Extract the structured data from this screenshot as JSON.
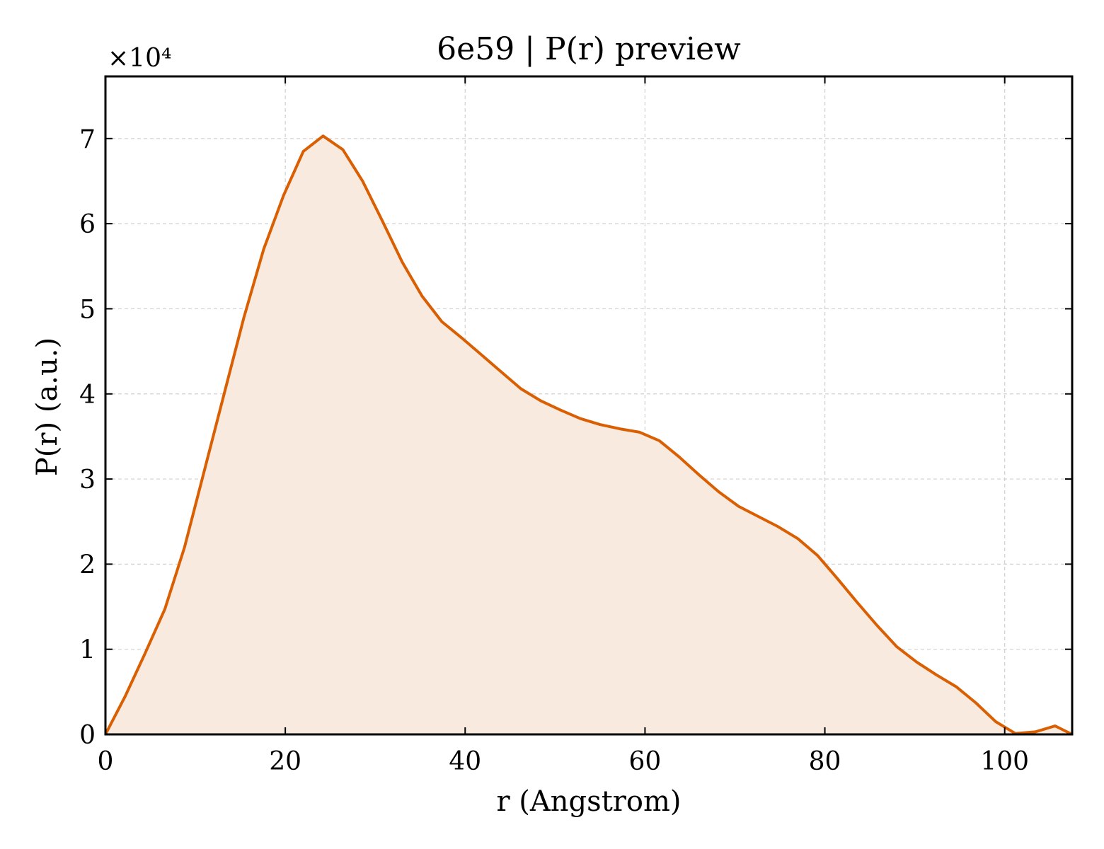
{
  "chart_data": {
    "type": "area",
    "title": "6e59 | P(r) preview",
    "xlabel": "r (Angstrom)",
    "ylabel": "P(r) (a.u.)",
    "y_multiplier_label": "×10⁴",
    "xlim": [
      0,
      107.5
    ],
    "ylim": [
      0,
      77300
    ],
    "xticks": [
      0,
      20,
      40,
      60,
      80,
      100
    ],
    "yticks": [
      0,
      10000,
      20000,
      30000,
      40000,
      50000,
      60000,
      70000
    ],
    "ytick_labels": [
      "0",
      "1",
      "2",
      "3",
      "4",
      "5",
      "6",
      "7"
    ],
    "grid": true,
    "legend": "none",
    "line_color": "#d95f02",
    "fill_color": "#f8eadf",
    "series": [
      {
        "x": [
          0,
          2.2,
          4.4,
          6.6,
          8.8,
          11.0,
          13.2,
          15.4,
          17.6,
          19.8,
          22.0,
          24.2,
          26.4,
          28.6,
          30.8,
          33.0,
          35.2,
          37.4,
          39.6,
          41.8,
          44.0,
          46.2,
          48.4,
          50.6,
          52.8,
          55.0,
          57.2,
          59.4,
          61.6,
          63.8,
          66.0,
          68.2,
          70.4,
          72.6,
          74.8,
          77.0,
          79.2,
          81.4,
          83.6,
          85.8,
          88.0,
          90.2,
          92.4,
          94.6,
          96.8,
          99.0,
          101.2,
          103.4,
          105.6,
          107.5
        ],
        "values": [
          0,
          4500,
          9500,
          14700,
          22000,
          31000,
          40000,
          49000,
          57000,
          63300,
          68500,
          70300,
          68700,
          65000,
          60300,
          55500,
          51500,
          48500,
          46600,
          44600,
          42600,
          40600,
          39200,
          38100,
          37100,
          36400,
          35900,
          35500,
          34500,
          32600,
          30500,
          28500,
          26800,
          25600,
          24400,
          23000,
          21000,
          18300,
          15500,
          12800,
          10300,
          8500,
          7000,
          5600,
          3700,
          1500,
          100,
          300,
          1000,
          0
        ]
      }
    ]
  }
}
